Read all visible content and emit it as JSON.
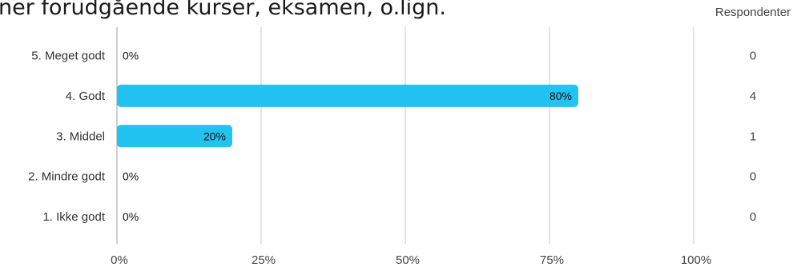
{
  "chart_data": {
    "type": "bar",
    "orientation": "horizontal",
    "title": "ner forudgående kurser, eksamen, o.lign.",
    "categories": [
      "5. Meget godt",
      "4. Godt",
      "3. Middel",
      "2. Mindre godt",
      "1. Ikke godt"
    ],
    "values": [
      0,
      80,
      20,
      0,
      0
    ],
    "value_labels": [
      "0%",
      "80%",
      "20%",
      "0%",
      "0%"
    ],
    "respondents_header": "Respondenter",
    "respondents": [
      "0",
      "4",
      "1",
      "0",
      "0"
    ],
    "x_ticks": [
      "0%",
      "25%",
      "50%",
      "75%",
      "100%"
    ],
    "xlim": [
      0,
      100
    ],
    "grid": true,
    "bar_color": "#22c3f0"
  }
}
